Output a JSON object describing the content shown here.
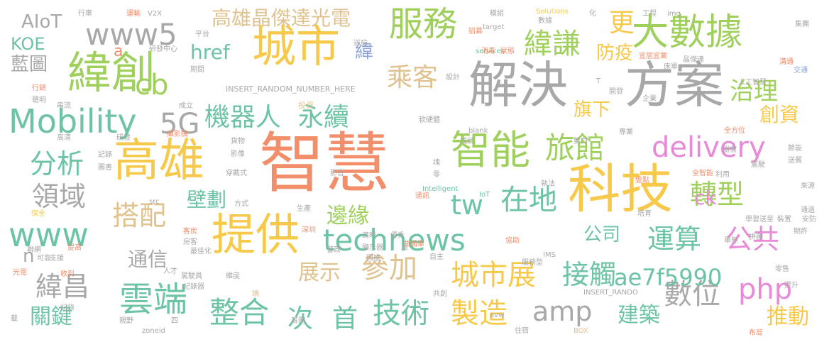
{
  "palette": {
    "orange": "#f28e6a",
    "gray": "#a8a8a8",
    "green": "#9fd05c",
    "yellow": "#f7c94a",
    "tan": "#e0c28f",
    "teal": "#6cc4a4",
    "pink": "#e88ad8",
    "blue": "#8ba3d6",
    "bright": "#f0a13a"
  },
  "words": [
    "智慧",
    "解決",
    "方案",
    "科技",
    "城市",
    "高雄",
    "提供",
    "緯創",
    "智能",
    "服務",
    "大數據",
    "雲端",
    "旅館",
    "技術",
    "製造",
    "Mobility",
    "整合",
    "數位",
    "amp",
    "www5",
    "機器人",
    "永續",
    "delivery",
    "高雄晶傑達光電",
    "城市展",
    "technews",
    "參加",
    "www",
    "緯謙",
    "在地",
    "php",
    "5G",
    "cb",
    "分析",
    "領域",
    "搭配",
    "tw",
    "轉型",
    "接觸",
    "運算",
    "公共",
    "緯昌",
    "次",
    "首",
    "治理",
    "創資",
    "更",
    "乘客",
    "旗下",
    "防疫",
    "邊緣",
    "壁劃",
    "公司",
    "展示",
    "通信",
    "關鍵",
    "建築",
    "推動",
    "ae7f5990",
    "href",
    "藍圖",
    "KOE",
    "AIoT",
    "a",
    "ck",
    "n",
    "緯",
    "INSERT_RANDOM_NUMBER_HERE",
    "投資",
    "研發中心",
    "期間",
    "成立",
    "行銷",
    "聰明",
    "串流",
    "高清",
    "研發",
    "記錄",
    "圖書",
    "保全",
    "聯網",
    "光電",
    "紀錄",
    "親野",
    "四",
    "首圖",
    "zoneid",
    "services",
    "Solutions",
    "IoT",
    "Intelligent",
    "BOX",
    "IMS",
    "INSERT_RANDO",
    "avw",
    "_blank",
    "src",
    "方式",
    "影音",
    "巡檢",
    "軟硬體",
    "模組",
    "target",
    "數據",
    "化",
    "工程",
    "img",
    "集團",
    "行車",
    "運輸",
    "V2X",
    "平台",
    "招募",
    "消毒",
    "狀態",
    "設計",
    "宜居宜業",
    "床單",
    "晶傑達",
    "人工智慧",
    "溝通",
    "交通",
    "企業",
    "開發",
    "雙向",
    "專業",
    "全方位",
    "節能",
    "送餐",
    "駕駛",
    "關懷",
    "全智能",
    "利用",
    "執法",
    "盤點",
    "培育",
    "優秀",
    "適時",
    "協助",
    "服務型",
    "自主",
    "車",
    "曲面車",
    "顯示器",
    "因應",
    "警政",
    "深圳",
    "生產",
    "零",
    "通訊",
    "塊",
    "成就",
    "貨物",
    "影像",
    "穿戴式",
    "客房",
    "房客",
    "最佳化",
    "駕駛員",
    "紀錄器",
    "維度",
    "端",
    "共創",
    "住宿",
    "布局",
    "零售",
    "拼圖",
    "單無",
    "送至",
    "學習",
    "裝置",
    "期許",
    "安防",
    "通過",
    "提升",
    "來源",
    "支援",
    "可靠",
    "提高",
    "收到",
    "人才",
    "載",
    "攝影機",
    "T"
  ]
}
